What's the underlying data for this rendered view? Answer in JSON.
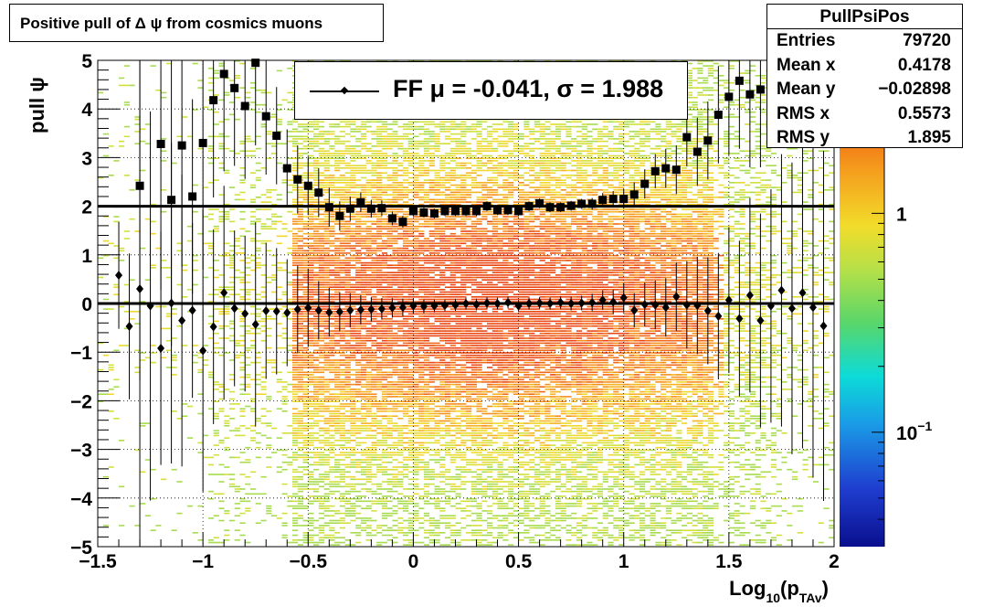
{
  "title": "Positive pull of Δ ψ from cosmics muons",
  "stats": {
    "name": "PullPsiPos",
    "rows": [
      {
        "label": "Entries",
        "value": "79720"
      },
      {
        "label": "Mean x",
        "value": "0.4178"
      },
      {
        "label": "Mean y",
        "value": "−0.02898"
      },
      {
        "label": "RMS x",
        "value": "0.5573"
      },
      {
        "label": "RMS y",
        "value": "1.895"
      }
    ]
  },
  "legend": {
    "entry": "FF μ = -0.041, σ =   1.988"
  },
  "colors": {
    "marker": "#000000",
    "frame": "#000000",
    "palette": "rainbow (ROOT kRainBow): dark blue → cyan → green → yellow → orange → red"
  },
  "chart_data": {
    "type": "heatmap",
    "title": "Positive pull of Δ ψ from cosmics muons",
    "xlabel": "Log10(pTAv)",
    "xlabel_main": "Log",
    "xlabel_sub1": "10",
    "xlabel_mid": "(p",
    "xlabel_sub2": "TAv",
    "xlabel_end": ")",
    "ylabel": "pull ψ",
    "xlim": [
      -1.5,
      2.0
    ],
    "ylim": [
      -5,
      5
    ],
    "x_ticks": [
      "−1.5",
      "−1",
      "−0.5",
      "0",
      "0.5",
      "1",
      "1.5",
      "2"
    ],
    "x_tick_values": [
      -1.5,
      -1,
      -0.5,
      0,
      0.5,
      1,
      1.5,
      2
    ],
    "y_ticks": [
      "−5",
      "−4",
      "−3",
      "−2",
      "−1",
      "0",
      "1",
      "2",
      "3",
      "4",
      "5"
    ],
    "y_tick_values": [
      -5,
      -4,
      -3,
      -2,
      -1,
      0,
      1,
      2,
      3,
      4,
      5
    ],
    "colorbar": {
      "scale": "log",
      "range": [
        0.03,
        5
      ],
      "labels": [
        {
          "text": "1",
          "value": 1
        },
        {
          "text": "10",
          "sup": "−1",
          "value": 0.1
        }
      ]
    },
    "grid": true,
    "logz": true,
    "x_centers": [
      -1.4,
      -1.35,
      -1.3,
      -1.25,
      -1.2,
      -1.15,
      -1.1,
      -1.05,
      -1.0,
      -0.95,
      -0.9,
      -0.85,
      -0.8,
      -0.75,
      -0.7,
      -0.65,
      -0.6,
      -0.55,
      -0.5,
      -0.45,
      -0.4,
      -0.35,
      -0.3,
      -0.25,
      -0.2,
      -0.15,
      -0.1,
      -0.05,
      0.0,
      0.05,
      0.1,
      0.15,
      0.2,
      0.25,
      0.3,
      0.35,
      0.4,
      0.45,
      0.5,
      0.55,
      0.6,
      0.65,
      0.7,
      0.75,
      0.8,
      0.85,
      0.9,
      0.95,
      1.0,
      1.05,
      1.1,
      1.15,
      1.2,
      1.25,
      1.3,
      1.35,
      1.4,
      1.45,
      1.5,
      1.55,
      1.6,
      1.65,
      1.7,
      1.75,
      1.8,
      1.85,
      1.9,
      1.95
    ],
    "series": [
      {
        "name": "mean",
        "marker": "diamond",
        "values": [
          0.58,
          -0.47,
          0.3,
          -0.05,
          -0.92,
          0.01,
          -0.35,
          -0.14,
          -0.97,
          -0.48,
          0.22,
          -0.1,
          -0.21,
          -0.43,
          -0.15,
          -0.16,
          -0.19,
          -0.12,
          -0.09,
          -0.14,
          -0.18,
          -0.17,
          -0.14,
          -0.13,
          -0.12,
          -0.11,
          -0.09,
          -0.08,
          -0.05,
          -0.06,
          -0.05,
          -0.04,
          -0.03,
          0.0,
          -0.02,
          0.01,
          0.0,
          0.02,
          -0.05,
          0.0,
          0.01,
          0.0,
          0.02,
          0.0,
          0.01,
          0.02,
          0.07,
          0.03,
          0.12,
          -0.14,
          -0.02,
          -0.03,
          -0.08,
          0.14,
          -0.03,
          -0.04,
          -0.15,
          -0.26,
          0.07,
          -0.31,
          0.17,
          -0.35,
          -0.05,
          0.27,
          -0.1,
          0.22,
          -0.08,
          -0.46
        ],
        "errors": [
          1.1,
          1.5,
          6.0,
          4.0,
          2.4,
          3.3,
          3.0,
          1.8,
          2.9,
          2.0,
          2.2,
          1.6,
          1.6,
          2.1,
          1.4,
          1.3,
          1.1,
          0.9,
          0.8,
          0.6,
          0.5,
          0.4,
          0.35,
          0.3,
          0.25,
          0.22,
          0.2,
          0.18,
          0.15,
          0.14,
          0.13,
          0.12,
          0.12,
          0.12,
          0.12,
          0.12,
          0.12,
          0.12,
          0.12,
          0.12,
          0.12,
          0.12,
          0.13,
          0.14,
          0.15,
          0.18,
          0.2,
          0.25,
          0.3,
          0.35,
          0.45,
          0.5,
          0.6,
          0.7,
          0.9,
          1.0,
          1.1,
          1.3,
          1.5,
          1.6,
          2.0,
          2.2,
          2.4,
          2.8,
          3.0,
          3.2,
          3.5,
          3.6
        ]
      },
      {
        "name": "rms",
        "marker": "square",
        "values": [
          null,
          null,
          2.42,
          null,
          3.28,
          2.13,
          3.25,
          2.2,
          3.3,
          4.18,
          4.72,
          4.43,
          4.06,
          4.95,
          3.85,
          3.45,
          2.78,
          2.55,
          2.42,
          2.28,
          1.98,
          1.8,
          1.95,
          2.08,
          1.95,
          1.96,
          1.75,
          1.68,
          1.9,
          1.87,
          1.85,
          1.9,
          1.9,
          1.9,
          1.9,
          2.0,
          1.92,
          1.92,
          1.9,
          2.0,
          2.06,
          1.98,
          1.98,
          2.01,
          2.05,
          2.05,
          2.13,
          2.15,
          2.15,
          2.24,
          2.46,
          2.72,
          2.78,
          2.75,
          3.42,
          3.12,
          3.35,
          3.88,
          4.25,
          4.58,
          4.3,
          4.4,
          null,
          null,
          null,
          null,
          null,
          null
        ],
        "errors": [
          0,
          0,
          4.0,
          0,
          3.0,
          3.0,
          2.5,
          2.0,
          2.6,
          2.0,
          2.0,
          1.6,
          1.5,
          1.7,
          1.2,
          1.0,
          0.8,
          0.7,
          0.6,
          0.5,
          0.4,
          0.3,
          0.25,
          0.2,
          0.18,
          0.16,
          0.14,
          0.12,
          0.11,
          0.1,
          0.1,
          0.1,
          0.1,
          0.1,
          0.1,
          0.1,
          0.1,
          0.1,
          0.1,
          0.1,
          0.1,
          0.1,
          0.1,
          0.1,
          0.1,
          0.12,
          0.14,
          0.16,
          0.2,
          0.25,
          0.3,
          0.35,
          0.4,
          0.5,
          0.6,
          0.7,
          0.8,
          1.0,
          1.2,
          1.4,
          1.5,
          1.6,
          0,
          0,
          0,
          0,
          0,
          0
        ]
      }
    ],
    "hlines": [
      0,
      2
    ]
  }
}
